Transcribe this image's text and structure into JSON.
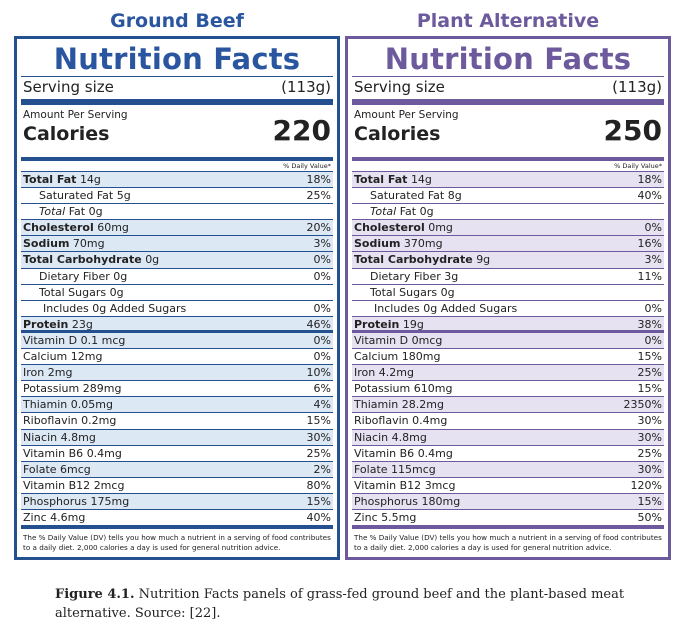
{
  "panels": [
    {
      "title": "Ground Beef",
      "nf": "Nutrition Facts",
      "serving_label": "Serving size",
      "serving_value": "(113g)",
      "amount": "Amount Per Serving",
      "calories_label": "Calories",
      "calories": "220",
      "dv_header": "% Daily Value*",
      "rows": [
        {
          "name": "Total Fat",
          "amount": "14g",
          "dv": "18%",
          "bold": true
        },
        {
          "name": "Saturated Fat",
          "amount": "5g",
          "dv": "25%",
          "indent": 1
        },
        {
          "name": "Total",
          "amount": "Fat 0g",
          "dv": "",
          "indent": 1,
          "italic": true
        },
        {
          "name": "Cholesterol",
          "amount": "60mg",
          "dv": "20%",
          "bold": true
        },
        {
          "name": "Sodium",
          "amount": "70mg",
          "dv": "3%",
          "bold": true
        },
        {
          "name": "Total Carbohydrate",
          "amount": "0g",
          "dv": "0%",
          "bold": true
        },
        {
          "name": "Dietary Fiber",
          "amount": "0g",
          "dv": "0%",
          "indent": 1
        },
        {
          "name": "Total Sugars",
          "amount": "0g",
          "dv": "",
          "indent": 1
        },
        {
          "name": "Includes 0g Added Sugars",
          "amount": "",
          "dv": "0%",
          "indent": 2
        },
        {
          "name": "Protein",
          "amount": "23g",
          "dv": "46%",
          "bold": true,
          "heavy": true
        },
        {
          "name": "Vitamin D",
          "amount": "0.1 mcg",
          "dv": "0%"
        },
        {
          "name": "Calcium",
          "amount": "12mg",
          "dv": "0%"
        },
        {
          "name": "Iron",
          "amount": "2mg",
          "dv": "10%"
        },
        {
          "name": "Potassium",
          "amount": "289mg",
          "dv": "6%"
        },
        {
          "name": "Thiamin",
          "amount": "0.05mg",
          "dv": "4%"
        },
        {
          "name": "Riboflavin",
          "amount": "0.2mg",
          "dv": "15%"
        },
        {
          "name": "Niacin",
          "amount": "4.8mg",
          "dv": "30%"
        },
        {
          "name": "Vitamin B6",
          "amount": "0.4mg",
          "dv": "25%"
        },
        {
          "name": "Folate",
          "amount": "6mcg",
          "dv": "2%"
        },
        {
          "name": "Vitamin B12",
          "amount": "2mcg",
          "dv": "80%"
        },
        {
          "name": "Phosphorus",
          "amount": "175mg",
          "dv": "15%"
        },
        {
          "name": "Zinc",
          "amount": "4.6mg",
          "dv": "40%"
        }
      ],
      "footnote": "The % Daily Value (DV) tells you how much a nutrient in a serving of food contributes to a daily diet. 2,000 calories a day is used for general nutrition advice."
    },
    {
      "title": "Plant Alternative",
      "nf": "Nutrition Facts",
      "serving_label": "Serving size",
      "serving_value": "(113g)",
      "amount": "Amount Per Serving",
      "calories_label": "Calories",
      "calories": "250",
      "dv_header": "% Daily Value*",
      "rows": [
        {
          "name": "Total Fat",
          "amount": "14g",
          "dv": "18%",
          "bold": true
        },
        {
          "name": "Saturated Fat",
          "amount": "8g",
          "dv": "40%",
          "indent": 1
        },
        {
          "name": "Total",
          "amount": "Fat 0g",
          "dv": "",
          "indent": 1,
          "italic": true
        },
        {
          "name": "Cholesterol",
          "amount": "0mg",
          "dv": "0%",
          "bold": true
        },
        {
          "name": "Sodium",
          "amount": "370mg",
          "dv": "16%",
          "bold": true
        },
        {
          "name": "Total Carbohydrate",
          "amount": "9g",
          "dv": "3%",
          "bold": true
        },
        {
          "name": "Dietary Fiber",
          "amount": "3g",
          "dv": "11%",
          "indent": 1
        },
        {
          "name": "Total Sugars",
          "amount": "0g",
          "dv": "",
          "indent": 1
        },
        {
          "name": "Includes 0g Added Sugars",
          "amount": "",
          "dv": "0%",
          "indent": 2
        },
        {
          "name": "Protein",
          "amount": "19g",
          "dv": "38%",
          "bold": true,
          "heavy": true
        },
        {
          "name": "Vitamin D",
          "amount": "0mcg",
          "dv": "0%"
        },
        {
          "name": "Calcium",
          "amount": "180mg",
          "dv": "15%"
        },
        {
          "name": "Iron",
          "amount": "4.2mg",
          "dv": "25%"
        },
        {
          "name": "Potassium",
          "amount": "610mg",
          "dv": "15%"
        },
        {
          "name": "Thiamin",
          "amount": "28.2mg",
          "dv": "2350%"
        },
        {
          "name": "Riboflavin",
          "amount": "0.4mg",
          "dv": "30%"
        },
        {
          "name": "Niacin",
          "amount": "4.8mg",
          "dv": "30%"
        },
        {
          "name": "Vitamin B6",
          "amount": "0.4mg",
          "dv": "25%"
        },
        {
          "name": "Folate",
          "amount": "115mcg",
          "dv": "30%"
        },
        {
          "name": "Vitamin B12",
          "amount": "3mcg",
          "dv": "120%"
        },
        {
          "name": "Phosphorus",
          "amount": "180mg",
          "dv": "15%"
        },
        {
          "name": "Zinc",
          "amount": "5.5mg",
          "dv": "50%"
        }
      ],
      "footnote": "The % Daily Value (DV) tells you how much a nutrient in a serving of food contributes to a daily diet. 2,000 calories a day is used for general nutrition advice."
    }
  ],
  "caption": {
    "label": "Figure 4.1.",
    "text": "Nutrition Facts panels of grass-fed ground beef and the plant-based meat alternative. Source: [22]."
  },
  "colors": {
    "beef_accent": "#2a56a0",
    "plant_accent": "#6d5a9c",
    "beef_shade": "#dde8f5",
    "plant_shade": "#e7e2f2"
  }
}
